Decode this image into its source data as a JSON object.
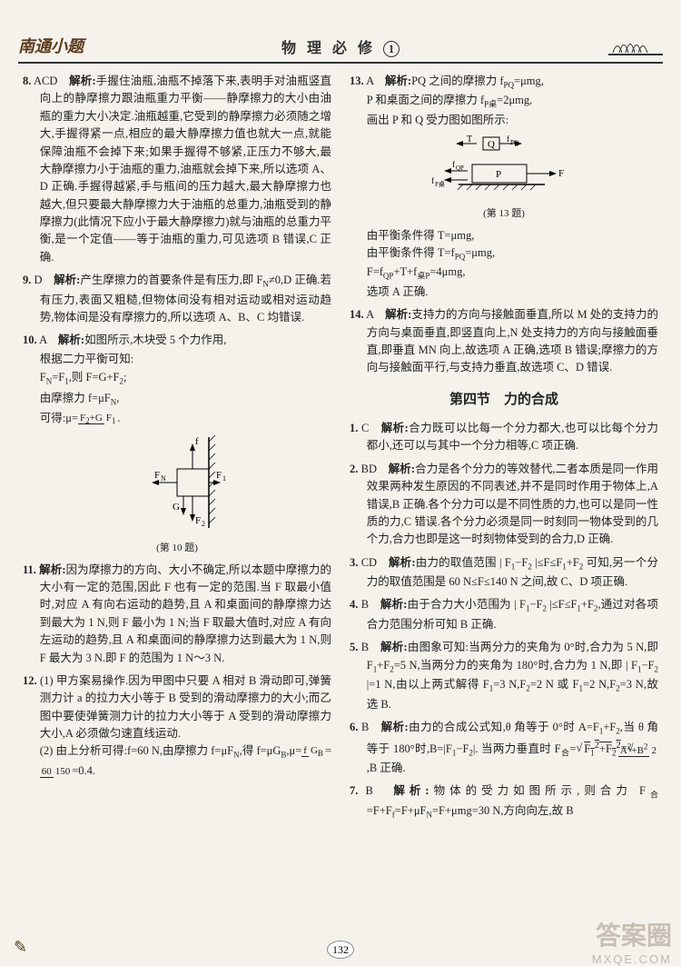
{
  "header": {
    "left": "南通小题",
    "center_prefix": "物 理 必 修",
    "center_num": "1"
  },
  "page_number": "132",
  "watermark": "答案圈",
  "watermark_sub": "MXQE.COM",
  "left_col": {
    "q8": {
      "num": "8.",
      "ans": "ACD",
      "label": "解析:",
      "text": "手握住油瓶,油瓶不掉落下来,表明手对油瓶竖直向上的静摩擦力跟油瓶重力平衡——静摩擦力的大小由油瓶的重力大小决定.油瓶越重,它受到的静摩擦力必须随之增大,手握得紧一点,相应的最大静摩擦力值也就大一点,就能保障油瓶不会掉下来;如果手握得不够紧,正压力不够大,最大静摩擦力小于油瓶的重力,油瓶就会掉下来,所以选项 A、D 正确.手握得越紧,手与瓶间的压力越大,最大静摩擦力也越大,但只要最大静摩擦力大于油瓶的总重力,油瓶受到的静摩擦力(此情况下应小于最大静摩擦力)就与油瓶的总重力平衡,是一个定值——等于油瓶的重力,可见选项 B 错误,C 正确."
    },
    "q9": {
      "num": "9.",
      "ans": "D",
      "label": "解析:",
      "text": "产生摩擦力的首要条件是有压力,即 F<sub>N</sub>≠0,D 正确.若有压力,表面又粗糙,但物体间没有相对运动或相对运动趋势,物体间是没有摩擦力的,所以选项 A、B、C 均错误."
    },
    "q10": {
      "num": "10.",
      "ans": "A",
      "label": "解析:",
      "intro": "如图所示,木块受 5 个力作用,",
      "l1": "根据二力平衡可知:",
      "l2": "F<sub>N</sub>=F<sub>1</sub>,则 F=G+F<sub>2</sub>;",
      "l3": "由摩擦力 f=μF<sub>N</sub>,",
      "l4_pre": "可得:μ=",
      "frac_top": "F<sub>2</sub>+G",
      "frac_bot": "F<sub>1</sub>",
      "l4_post": ".",
      "caption": "(第 10 题)",
      "fig_labels": {
        "f": "f",
        "FN": "F<sub>N</sub>",
        "F1": "F<sub>1</sub>",
        "G": "G",
        "F2": "F<sub>2</sub>"
      }
    },
    "q11": {
      "num": "11.",
      "label": "解析:",
      "text": "因为摩擦力的方向、大小不确定,所以本题中摩擦力的大小有一定的范围,因此 F 也有一定的范围.当 F 取最小值时,对应 A 有向右运动的趋势,且 A 和桌面间的静摩擦力达到最大为 1 N,则 F 最小为 1 N;当 F 取最大值时,对应 A 有向左运动的趋势,且 A 和桌面间的静摩擦力达到最大为 1 N,则 F 最大为 3 N.即 F 的范围为 1 N～3 N."
    },
    "q12": {
      "num": "12.",
      "p1": "(1) 甲方案易操作.因为甲图中只要 A 相对 B 滑动即可,弹簧测力计 a 的拉力大小等于 B 受到的滑动摩擦力的大小;而乙图中要使弹簧测力计的拉力大小等于 A 受到的滑动摩擦力大小,A 必须做匀速直线运动.",
      "p2_pre": "(2) 由上分析可得:f=60 N,由摩擦力 f=μF<sub>N</sub>,得 f=μG<sub>B</sub>,μ=",
      "frac1_top": "f",
      "frac1_bot": "G<sub>B</sub>",
      "mid": "=",
      "frac2_top": "60",
      "frac2_bot": "150",
      "p2_post": "=0.4."
    }
  },
  "right_col": {
    "q13": {
      "num": "13.",
      "ans": "A",
      "label": "解析:",
      "l1": "PQ 之间的摩擦力 f<sub>PQ</sub>=μmg,",
      "l2": "P 和桌面之间的摩擦力 f<sub>P桌</sub>=2μmg,",
      "l3": "画出 P 和 Q 受力图如图所示:",
      "caption": "(第 13 题)",
      "l4": "由平衡条件得 T=μmg,",
      "l5": "由平衡条件得 T=f<sub>PQ</sub>=μmg,",
      "l6": "F=f<sub>QP</sub>+T+f<sub>桌P</sub>=4μmg,",
      "l7": "选项 A 正确.",
      "fig": {
        "T": "T",
        "Q": "Q",
        "fPQ": "f<sub>PQ</sub>",
        "fQP": "f<sub>QP</sub>",
        "P": "P",
        "F": "F",
        "fzP": "f<sub>P桌</sub>"
      }
    },
    "q14": {
      "num": "14.",
      "ans": "A",
      "label": "解析:",
      "text": "支持力的方向与接触面垂直,所以 M 处的支持力的方向与桌面垂直,即竖直向上,N 处支持力的方向与接触面垂直,即垂直 MN 向上,故选项 A 正确,选项 B 错误;摩擦力的方向与接触面平行,与支持力垂直,故选项 C、D 错误."
    },
    "section": "第四节　力的合成",
    "s1": {
      "num": "1.",
      "ans": "C",
      "label": "解析:",
      "text": "合力既可以比每一个分力都大,也可以比每个分力都小,还可以与其中一个分力相等,C 项正确."
    },
    "s2": {
      "num": "2.",
      "ans": "BD",
      "label": "解析:",
      "text": "合力是各个分力的等效替代,二者本质是同一作用效果两种发生原因的不同表述,并不是同时作用于物体上,A 错误,B 正确.各个分力可以是不同性质的力,也可以是同一性质的力,C 错误.各个分力必须是同一时刻同一物体受到的几个力,合力也即是这一时刻物体受到的合力,D 正确."
    },
    "s3": {
      "num": "3.",
      "ans": "CD",
      "label": "解析:",
      "text": "由力的取值范围 | F<sub>1</sub>−F<sub>2</sub> |≤F≤F<sub>1</sub>+F<sub>2</sub> 可知,另一个分力的取值范围是 60 N≤F≤140 N 之间,故 C、D 项正确."
    },
    "s4": {
      "num": "4.",
      "ans": "B",
      "label": "解析:",
      "text": "由于合力大小范围为 | F<sub>1</sub>−F<sub>2</sub> |≤F≤F<sub>1</sub>+F<sub>2</sub>,通过对各项合力范围分析可知 B 正确."
    },
    "s5": {
      "num": "5.",
      "ans": "B",
      "label": "解析:",
      "text": "由图象可知:当两分力的夹角为 0°时,合力为 5 N,即 F<sub>1</sub>+F<sub>2</sub>=5 N,当两分力的夹角为 180°时,合力为 1 N,即 | F<sub>1</sub>−F<sub>2</sub> |=1 N,由以上两式解得 F<sub>1</sub>=3 N,F<sub>2</sub>=2 N 或 F<sub>1</sub>=2 N,F<sub>2</sub>=3 N,故选 B."
    },
    "s6": {
      "num": "6.",
      "ans": "B",
      "label": "解析:",
      "pre": "由力的合成公式知,θ 角等于 0°时 A=F<sub>1</sub>+F<sub>2</sub>,当 θ 角等于 180°时,B=|F<sub>1</sub>−F<sub>2</sub>|. 当两力垂直时 F<sub>合</sub>=",
      "sq1": "F<sub>1</sub><sup>2</sup>+F<sub>2</sub><sup>2</sup>",
      "mid": "=",
      "sq2_top": "A<sup>2</sup>+B<sup>2</sup>",
      "sq2_bot": "2",
      "post": ",B 正确."
    },
    "s7": {
      "num": "7.",
      "ans": "B",
      "label": "解析:",
      "text": "物体的受力如图所示,则合力 F<sub>合</sub>=F+F<sub>f</sub>=F+μF<sub>N</sub>=F+μmg=30 N,方向向左,故 B"
    }
  }
}
